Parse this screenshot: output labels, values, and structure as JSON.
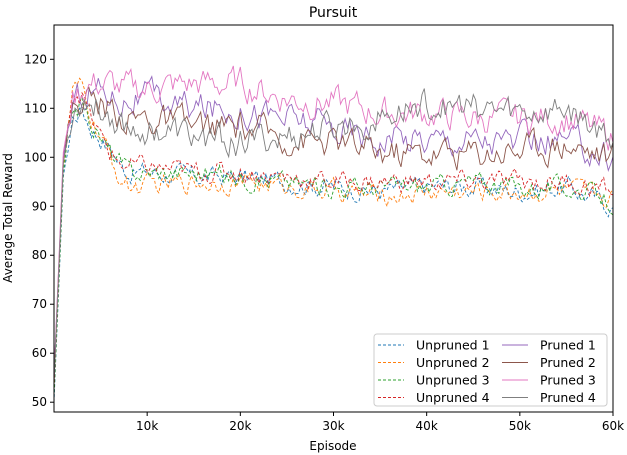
{
  "chart_data": {
    "type": "line",
    "title": "Pursuit",
    "xlabel": "Episode",
    "ylabel": "Average Total Reward",
    "xlim": [
      0,
      60000
    ],
    "ylim": [
      48,
      127
    ],
    "xticks": [
      10000,
      20000,
      30000,
      40000,
      50000,
      60000
    ],
    "xtick_labels": [
      "10k",
      "20k",
      "30k",
      "40k",
      "50k",
      "60k"
    ],
    "yticks": [
      50,
      60,
      70,
      80,
      90,
      100,
      110,
      120
    ],
    "ytick_labels": [
      "50",
      "60",
      "70",
      "80",
      "90",
      "100",
      "110",
      "120"
    ],
    "grid": false,
    "legend_position": "lower-right",
    "legend_columns": 2,
    "series": [
      {
        "name": "Unpruned 1",
        "color": "#1f77b4",
        "style": "dashed",
        "x": [
          0,
          1000,
          2000,
          3000,
          4000,
          5000,
          6000,
          7000,
          8000,
          10000,
          15000,
          20000,
          25000,
          30000,
          35000,
          40000,
          45000,
          50000,
          55000,
          60000
        ],
        "y": [
          50,
          96,
          108,
          110,
          106,
          104,
          102,
          99,
          97,
          97,
          96,
          96,
          95,
          94,
          93,
          94,
          94,
          93,
          94,
          90
        ]
      },
      {
        "name": "Unpruned 2",
        "color": "#ff7f0e",
        "style": "dashed",
        "x": [
          0,
          1000,
          2000,
          3000,
          4000,
          5000,
          6000,
          7000,
          8000,
          10000,
          15000,
          20000,
          25000,
          30000,
          35000,
          40000,
          45000,
          50000,
          55000,
          60000
        ],
        "y": [
          52,
          98,
          113,
          114,
          108,
          104,
          100,
          96,
          94,
          94,
          95,
          95,
          94,
          93,
          92,
          93,
          93,
          93,
          93,
          92
        ]
      },
      {
        "name": "Unpruned 3",
        "color": "#2ca02c",
        "style": "dashed",
        "x": [
          0,
          1000,
          2000,
          3000,
          4000,
          5000,
          6000,
          7000,
          8000,
          10000,
          15000,
          20000,
          25000,
          30000,
          35000,
          40000,
          45000,
          50000,
          55000,
          60000
        ],
        "y": [
          51,
          97,
          110,
          111,
          107,
          104,
          101,
          99,
          97,
          97,
          97,
          96,
          95,
          94,
          94,
          94,
          95,
          94,
          94,
          91
        ]
      },
      {
        "name": "Unpruned 4",
        "color": "#d62728",
        "style": "dashed",
        "x": [
          0,
          1000,
          2000,
          3000,
          4000,
          5000,
          6000,
          7000,
          8000,
          10000,
          15000,
          20000,
          25000,
          30000,
          35000,
          40000,
          45000,
          50000,
          55000,
          60000
        ],
        "y": [
          53,
          100,
          114,
          113,
          108,
          104,
          101,
          99,
          98,
          98,
          97,
          97,
          96,
          95,
          95,
          95,
          95,
          95,
          95,
          93
        ]
      },
      {
        "name": "Pruned 1",
        "color": "#9467bd",
        "style": "solid",
        "x": [
          0,
          1000,
          2000,
          3000,
          4000,
          5000,
          6000,
          7000,
          8000,
          10000,
          15000,
          20000,
          25000,
          30000,
          35000,
          40000,
          45000,
          50000,
          55000,
          60000
        ],
        "y": [
          55,
          100,
          111,
          113,
          114,
          114,
          113,
          112,
          112,
          112,
          110,
          110,
          108,
          106,
          104,
          104,
          104,
          103,
          103,
          100
        ]
      },
      {
        "name": "Pruned 2",
        "color": "#8c564b",
        "style": "solid",
        "x": [
          0,
          1000,
          2000,
          3000,
          4000,
          5000,
          6000,
          7000,
          8000,
          10000,
          15000,
          20000,
          25000,
          30000,
          35000,
          40000,
          45000,
          50000,
          55000,
          60000
        ],
        "y": [
          54,
          99,
          110,
          112,
          112,
          111,
          110,
          109,
          108,
          108,
          106,
          106,
          104,
          103,
          101,
          101,
          101,
          102,
          103,
          100
        ]
      },
      {
        "name": "Pruned 3",
        "color": "#e377c2",
        "style": "solid",
        "x": [
          0,
          1000,
          2000,
          3000,
          4000,
          5000,
          6000,
          7000,
          8000,
          10000,
          15000,
          20000,
          25000,
          30000,
          35000,
          40000,
          45000,
          50000,
          55000,
          60000
        ],
        "y": [
          55,
          101,
          112,
          114,
          115,
          115,
          115,
          114,
          114,
          114,
          115,
          115,
          112,
          111,
          109,
          109,
          108,
          108,
          108,
          104
        ]
      },
      {
        "name": "Pruned 4",
        "color": "#7f7f7f",
        "style": "solid",
        "x": [
          0,
          1000,
          2000,
          3000,
          4000,
          5000,
          6000,
          7000,
          8000,
          10000,
          15000,
          20000,
          25000,
          30000,
          35000,
          40000,
          45000,
          50000,
          55000,
          60000
        ],
        "y": [
          54,
          99,
          110,
          112,
          111,
          110,
          109,
          107,
          106,
          106,
          104,
          103,
          104,
          106,
          108,
          111,
          110,
          109,
          110,
          104
        ]
      }
    ]
  }
}
